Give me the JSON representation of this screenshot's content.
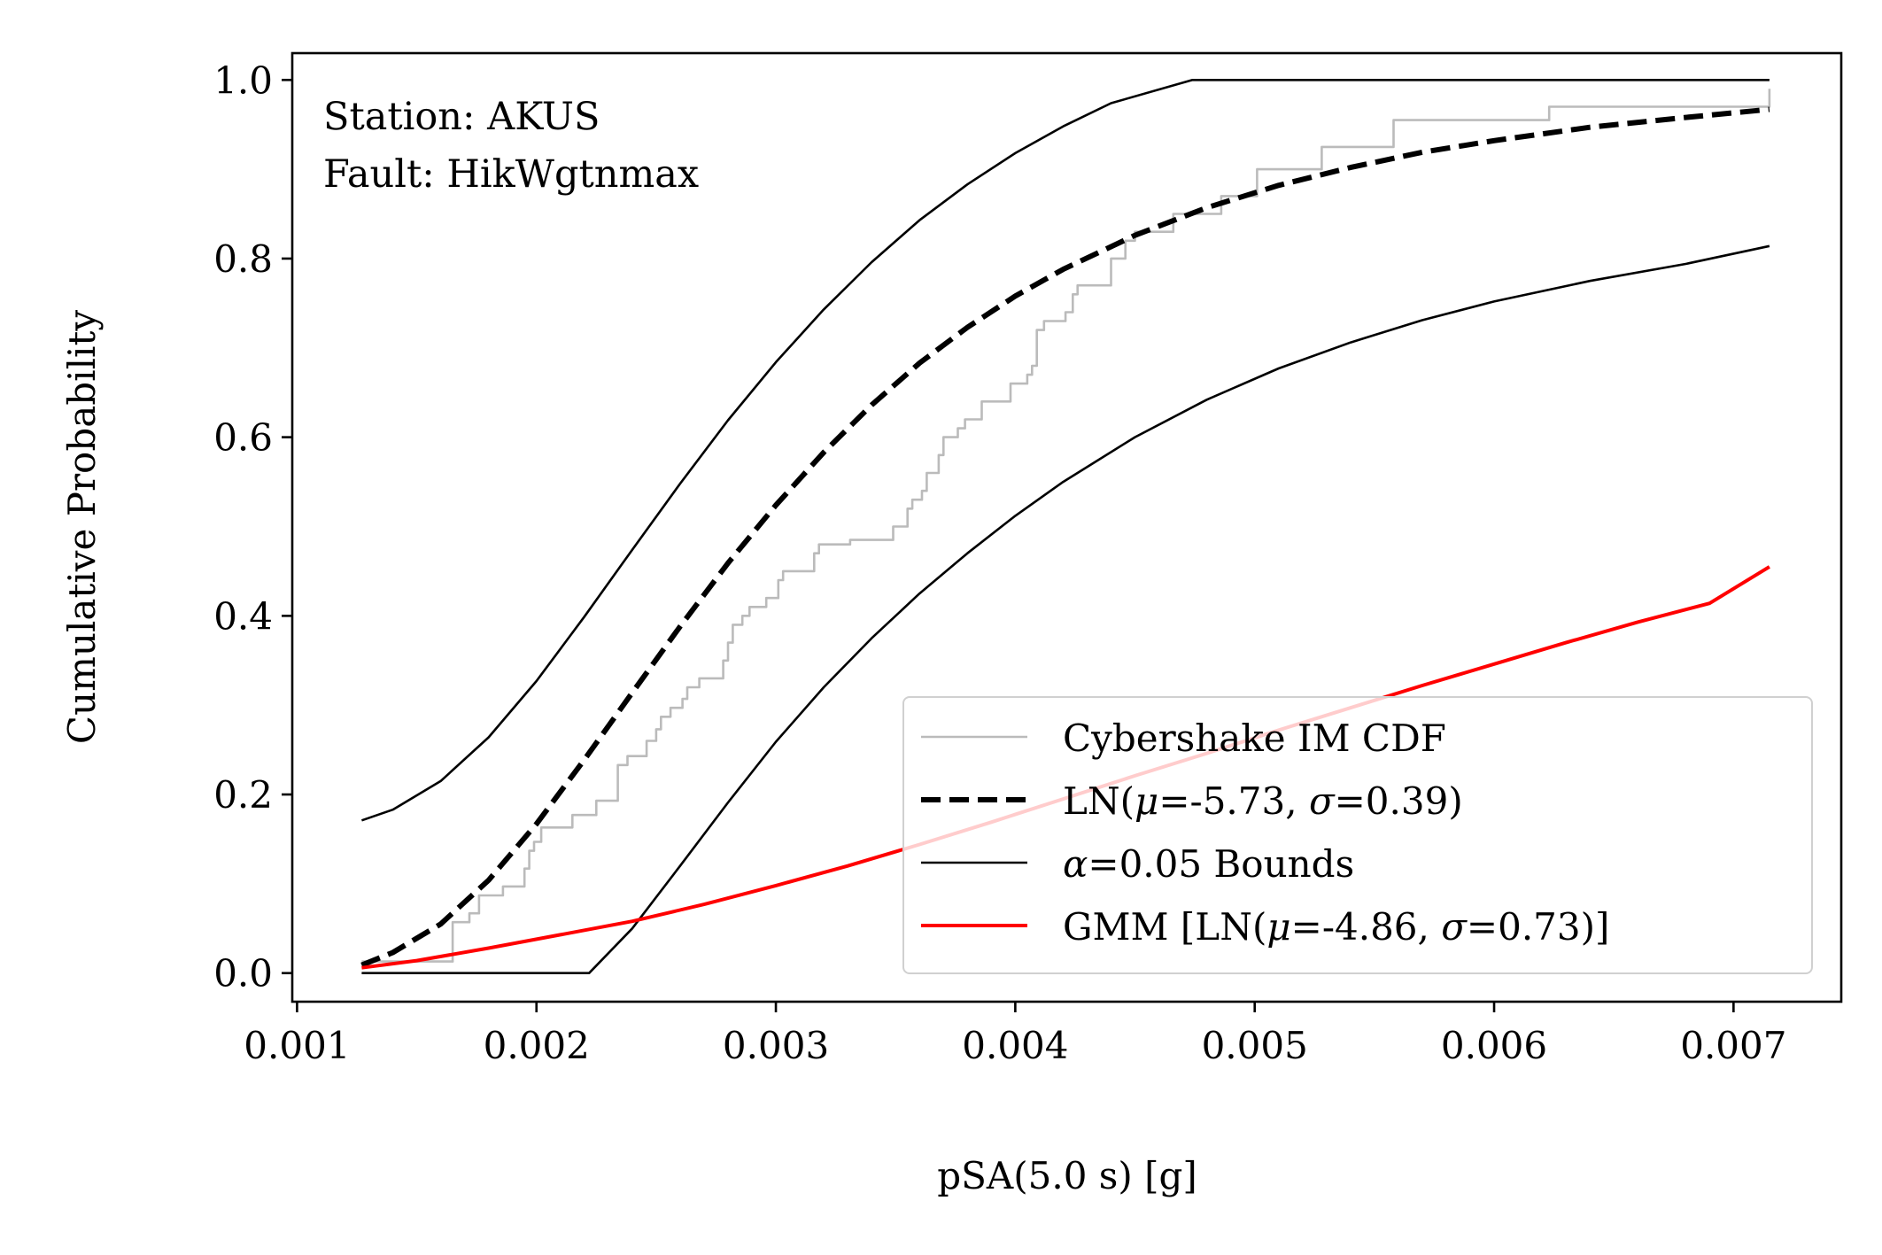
{
  "chart_data": {
    "type": "line",
    "title": "",
    "xlabel": "pSA(5.0 s) [g]",
    "ylabel": "Cumulative Probability",
    "xlim": [
      0.00098,
      0.00745
    ],
    "ylim": [
      -0.032,
      1.03
    ],
    "xticks": [
      "0.001",
      "0.002",
      "0.003",
      "0.004",
      "0.005",
      "0.006",
      "0.007"
    ],
    "yticks": [
      "0.0",
      "0.2",
      "0.4",
      "0.6",
      "0.8",
      "1.0"
    ],
    "grid": false,
    "legend_position": "lower-right",
    "annotation": {
      "station": "Station: AKUS",
      "fault": "Fault: HikWgtnmax"
    },
    "legend": [
      {
        "key": "empirical",
        "label_pre": "Cybershake IM CDF",
        "label_post": ""
      },
      {
        "key": "ln_fit",
        "label_pre": "LN(",
        "mu_value": "=-5.73, ",
        "sigma_value": "=0.39)"
      },
      {
        "key": "bounds",
        "label_pre": "",
        "alpha_value": "=0.05 Bounds"
      },
      {
        "key": "gmm",
        "label_pre": "GMM [LN(",
        "mu_value": "=-4.86, ",
        "sigma_value": "=0.73)]"
      }
    ],
    "greek": {
      "mu": "μ",
      "sigma": "σ",
      "alpha": "α"
    },
    "colors": {
      "empirical": "#bbbbbb",
      "ln_fit": "#000000",
      "bounds": "#000000",
      "gmm": "#ff0000"
    },
    "series": [
      {
        "name": "Cybershake IM CDF",
        "key": "empirical",
        "style": "step",
        "x": [
          0.00127,
          0.00165,
          0.00172,
          0.00176,
          0.00186,
          0.00195,
          0.00197,
          0.00199,
          0.00202,
          0.00215,
          0.00225,
          0.00234,
          0.00238,
          0.00246,
          0.0025,
          0.00252,
          0.00256,
          0.00261,
          0.00263,
          0.00268,
          0.00278,
          0.0028,
          0.00282,
          0.00286,
          0.00289,
          0.00296,
          0.00301,
          0.00303,
          0.00316,
          0.00318,
          0.00331,
          0.00349,
          0.00355,
          0.00357,
          0.00361,
          0.00363,
          0.00368,
          0.0037,
          0.00376,
          0.00379,
          0.00386,
          0.00398,
          0.00405,
          0.00407,
          0.00409,
          0.00412,
          0.00421,
          0.00424,
          0.00426,
          0.0044,
          0.00446,
          0.0045,
          0.00466,
          0.00486,
          0.00501,
          0.00528,
          0.00558,
          0.00623,
          0.00715
        ],
        "y": [
          0.013,
          0.057,
          0.067,
          0.087,
          0.097,
          0.117,
          0.137,
          0.147,
          0.163,
          0.177,
          0.193,
          0.233,
          0.243,
          0.26,
          0.273,
          0.287,
          0.297,
          0.307,
          0.32,
          0.33,
          0.35,
          0.37,
          0.39,
          0.4,
          0.41,
          0.42,
          0.44,
          0.45,
          0.47,
          0.48,
          0.485,
          0.5,
          0.52,
          0.53,
          0.54,
          0.56,
          0.58,
          0.6,
          0.61,
          0.62,
          0.64,
          0.66,
          0.67,
          0.68,
          0.72,
          0.73,
          0.74,
          0.76,
          0.77,
          0.8,
          0.82,
          0.83,
          0.85,
          0.87,
          0.9,
          0.925,
          0.955,
          0.97,
          0.99
        ]
      },
      {
        "name": "LN(μ=-5.73, σ=0.39)",
        "key": "ln_fit",
        "style": "dashed",
        "x": [
          0.00127,
          0.0014,
          0.0016,
          0.0018,
          0.002,
          0.0022,
          0.0024,
          0.0026,
          0.0028,
          0.003,
          0.0032,
          0.0034,
          0.0036,
          0.0038,
          0.004,
          0.0042,
          0.0045,
          0.0048,
          0.0051,
          0.0054,
          0.0057,
          0.006,
          0.0064,
          0.0068,
          0.00715
        ],
        "y": [
          0.009,
          0.023,
          0.055,
          0.104,
          0.167,
          0.239,
          0.314,
          0.388,
          0.459,
          0.524,
          0.583,
          0.636,
          0.683,
          0.723,
          0.758,
          0.788,
          0.826,
          0.857,
          0.882,
          0.902,
          0.919,
          0.932,
          0.947,
          0.958,
          0.967
        ]
      },
      {
        "name": "α=0.05 Bounds (upper)",
        "key": "bounds",
        "style": "solid",
        "x": [
          0.00127,
          0.0014,
          0.0016,
          0.0018,
          0.002,
          0.0022,
          0.0024,
          0.0026,
          0.0028,
          0.003,
          0.0032,
          0.0034,
          0.0036,
          0.0038,
          0.004,
          0.0042,
          0.0044,
          0.00474,
          0.005,
          0.0055,
          0.006,
          0.0065,
          0.00715
        ],
        "y": [
          0.171,
          0.183,
          0.215,
          0.264,
          0.327,
          0.399,
          0.474,
          0.548,
          0.619,
          0.684,
          0.743,
          0.796,
          0.843,
          0.883,
          0.918,
          0.948,
          0.974,
          1.0,
          1.0,
          1.0,
          1.0,
          1.0,
          1.0
        ]
      },
      {
        "name": "α=0.05 Bounds (lower)",
        "key": "bounds",
        "style": "solid",
        "x": [
          0.00127,
          0.00222,
          0.0024,
          0.0026,
          0.0028,
          0.003,
          0.0032,
          0.0034,
          0.0036,
          0.0038,
          0.004,
          0.0042,
          0.0045,
          0.0048,
          0.0051,
          0.0054,
          0.0057,
          0.006,
          0.0064,
          0.0068,
          0.00715
        ],
        "y": [
          0.0,
          0.0,
          0.05,
          0.12,
          0.191,
          0.259,
          0.32,
          0.375,
          0.425,
          0.47,
          0.512,
          0.55,
          0.6,
          0.642,
          0.677,
          0.706,
          0.731,
          0.752,
          0.775,
          0.794,
          0.814
        ]
      },
      {
        "name": "GMM [LN(μ=-4.86, σ=0.73)]",
        "key": "gmm",
        "style": "solid",
        "x": [
          0.00127,
          0.0015,
          0.0018,
          0.0021,
          0.0024,
          0.0027,
          0.003,
          0.0033,
          0.0036,
          0.0039,
          0.0042,
          0.0045,
          0.0048,
          0.0051,
          0.0054,
          0.0057,
          0.006,
          0.0063,
          0.0066,
          0.0069,
          0.00715
        ],
        "y": [
          0.006,
          0.014,
          0.028,
          0.043,
          0.058,
          0.077,
          0.098,
          0.12,
          0.144,
          0.169,
          0.195,
          0.221,
          0.246,
          0.272,
          0.297,
          0.322,
          0.346,
          0.37,
          0.393,
          0.414,
          0.455
        ]
      }
    ]
  }
}
